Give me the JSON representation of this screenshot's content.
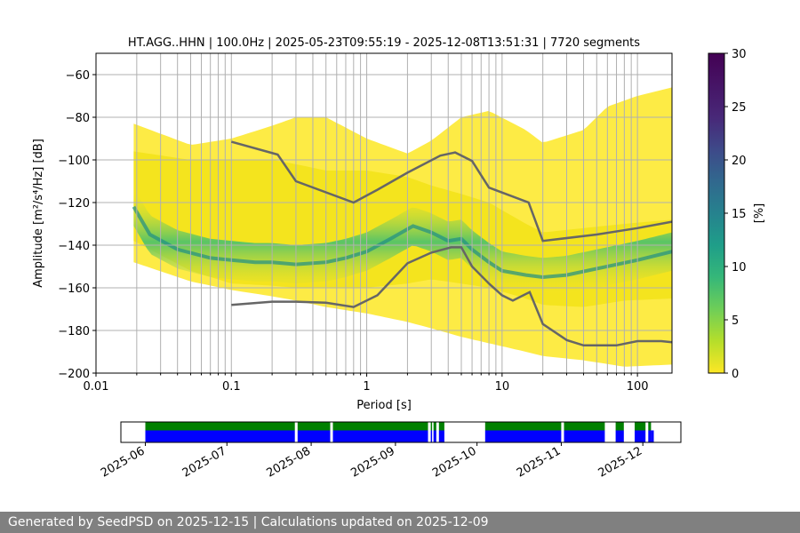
{
  "chart_data": [
    {
      "type": "heatmap",
      "title": "HT.AGG..HHN | 100.0Hz | 2025-05-23T09:55:19 - 2025-12-08T13:51:31 | 7720 segments",
      "xlabel": "Period [s]",
      "ylabel": "Amplitude [m²/s⁴/Hz] [dB]",
      "x_scale": "log",
      "xlim": [
        0.01,
        180
      ],
      "ylim": [
        -200,
        -50
      ],
      "x_ticks": [
        0.01,
        0.1,
        1,
        10,
        100
      ],
      "x_tick_labels": [
        "0.01",
        "0.1",
        "1",
        "10",
        "100"
      ],
      "y_ticks": [
        -60,
        -80,
        -100,
        -120,
        -140,
        -160,
        -180,
        -200
      ],
      "y_tick_labels": [
        "−60",
        "−80",
        "−100",
        "−120",
        "−140",
        "−160",
        "−180",
        "−200"
      ],
      "grid": true,
      "colorbar": {
        "label": "[%]",
        "range": [
          0,
          30
        ],
        "ticks": [
          0,
          5,
          10,
          15,
          20,
          25,
          30
        ],
        "tick_labels": [
          "0",
          "5",
          "10",
          "15",
          "20",
          "25",
          "30"
        ],
        "colormap": "viridis"
      },
      "density": {
        "mode_curve": {
          "x": [
            0.019,
            0.025,
            0.04,
            0.07,
            0.1,
            0.15,
            0.2,
            0.3,
            0.5,
            0.7,
            1.0,
            1.5,
            2.2,
            3.0,
            4.0,
            5.0,
            6.0,
            8.0,
            10,
            15,
            20,
            30,
            50,
            100,
            180
          ],
          "y": [
            -122,
            -135,
            -142,
            -146,
            -147,
            -148,
            -148,
            -149,
            -148,
            -146,
            -143,
            -137,
            -131,
            -134,
            -138,
            -137,
            -142,
            -148,
            -152,
            -154,
            -155,
            -154,
            -151,
            -147,
            -143
          ]
        },
        "upper_edge": {
          "x": [
            0.019,
            0.05,
            0.1,
            0.2,
            0.3,
            0.5,
            1.0,
            2.0,
            3.0,
            5.0,
            8.0,
            15,
            20,
            40,
            80,
            180
          ],
          "y": [
            -96,
            -100,
            -100,
            -100,
            -102,
            -105,
            -105,
            -108,
            -112,
            -116,
            -120,
            -130,
            -134,
            -132,
            -130,
            -128
          ]
        },
        "lower_edge": {
          "x": [
            0.019,
            0.05,
            0.1,
            0.2,
            0.3,
            0.5,
            1.0,
            2.0,
            3.0,
            5.0,
            8.0,
            15,
            20,
            40,
            80,
            180
          ],
          "y": [
            -138,
            -152,
            -158,
            -159,
            -160,
            -160,
            -160,
            -158,
            -156,
            -158,
            -160,
            -165,
            -168,
            -169,
            -166,
            -165
          ]
        },
        "sparse_upper": {
          "x": [
            0.019,
            0.05,
            0.1,
            0.2,
            0.3,
            0.5,
            1.0,
            2.0,
            3.0,
            5.0,
            8.0,
            15,
            20,
            40,
            60,
            100,
            180
          ],
          "y": [
            -83,
            -93,
            -90,
            -84,
            -80,
            -80,
            -90,
            -97,
            -91,
            -80,
            -77,
            -86,
            -92,
            -86,
            -75,
            -70,
            -66
          ]
        },
        "sparse_lower": {
          "x": [
            0.019,
            0.05,
            0.1,
            0.2,
            0.3,
            0.5,
            1.0,
            2.0,
            3.0,
            5.0,
            8.0,
            15,
            20,
            40,
            80,
            180
          ],
          "y": [
            -148,
            -157,
            -161,
            -164,
            -166,
            -169,
            -172,
            -176,
            -179,
            -183,
            -186,
            -190,
            -192,
            -194,
            -197,
            -196
          ]
        }
      },
      "series": [
        {
          "x": [
            0.1,
            0.22,
            0.3,
            0.8,
            1.2,
            2.0,
            3.5,
            4.5,
            6.0,
            8.0,
            15.7,
            20,
            50,
            100,
            180
          ],
          "y": [
            -91.5,
            -97.5,
            -110,
            -120,
            -114,
            -106,
            -98,
            -96.5,
            -100.5,
            -113,
            -120,
            -138,
            -135,
            -132,
            -129
          ]
        },
        {
          "x": [
            0.1,
            0.2,
            0.3,
            0.5,
            0.8,
            1.2,
            2.0,
            3.0,
            4.2,
            5.0,
            6.0,
            8.0,
            10,
            12,
            16,
            20,
            30,
            40,
            70,
            100,
            150,
            180
          ],
          "y": [
            -168,
            -166.5,
            -166.5,
            -167,
            -169,
            -163.5,
            -148.5,
            -143.5,
            -141,
            -141,
            -150,
            -158,
            -163.5,
            -166,
            -162,
            -177,
            -184.5,
            -187,
            -187,
            -185,
            -185,
            -185.5
          ]
        }
      ]
    },
    {
      "type": "bar",
      "x_scale": "time",
      "xlim": [
        "2025-05-23",
        "2025-12-15"
      ],
      "x_tick_labels": [
        "2025-06",
        "2025-07",
        "2025-08",
        "2025-09",
        "2025-10",
        "2025-11",
        "2025-12"
      ],
      "x_ticks": [
        "2025-06-01",
        "2025-07-01",
        "2025-08-01",
        "2025-09-01",
        "2025-10-01",
        "2025-11-01",
        "2025-12-01"
      ],
      "rows": [
        {
          "color": "#008000",
          "spans": [
            [
              "2025-06-01",
              "2025-06-10"
            ],
            [
              "2025-06-10",
              "2025-07-26"
            ],
            [
              "2025-07-27",
              "2025-08-08"
            ],
            [
              "2025-08-09",
              "2025-09-13"
            ],
            [
              "2025-09-14",
              "2025-09-14"
            ],
            [
              "2025-09-15",
              "2025-09-16"
            ],
            [
              "2025-09-17",
              "2025-09-19"
            ],
            [
              "2025-10-04",
              "2025-11-01"
            ],
            [
              "2025-11-02",
              "2025-11-17"
            ],
            [
              "2025-11-21",
              "2025-11-24"
            ],
            [
              "2025-11-28",
              "2025-12-02"
            ],
            [
              "2025-12-03",
              "2025-12-04"
            ]
          ]
        },
        {
          "color": "#0000ff",
          "spans": [
            [
              "2025-06-01",
              "2025-06-10"
            ],
            [
              "2025-06-10",
              "2025-07-26"
            ],
            [
              "2025-07-27",
              "2025-08-08"
            ],
            [
              "2025-08-09",
              "2025-09-13"
            ],
            [
              "2025-09-14",
              "2025-09-14"
            ],
            [
              "2025-09-15",
              "2025-09-16"
            ],
            [
              "2025-09-17",
              "2025-09-19"
            ],
            [
              "2025-10-04",
              "2025-11-01"
            ],
            [
              "2025-11-02",
              "2025-11-17"
            ],
            [
              "2025-11-21",
              "2025-11-24"
            ],
            [
              "2025-11-28",
              "2025-12-02"
            ],
            [
              "2025-12-03",
              "2025-12-04"
            ],
            [
              "2025-12-04",
              "2025-12-05"
            ]
          ]
        }
      ]
    }
  ],
  "footer": {
    "text": "Generated by SeedPSD on 2025-12-15 | Calculations updated on 2025-12-09"
  }
}
